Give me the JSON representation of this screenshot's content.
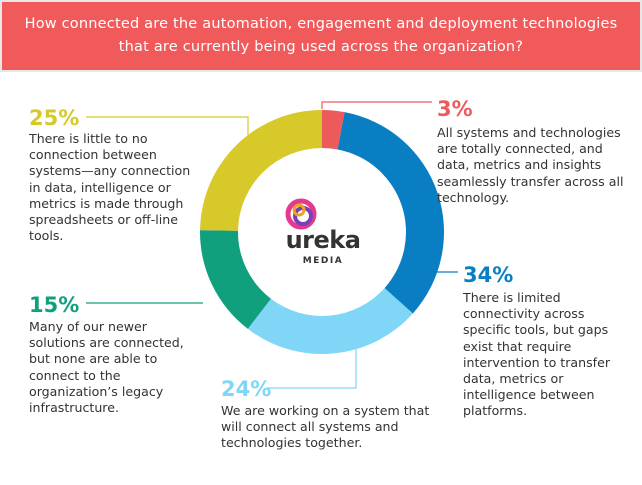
{
  "header": {
    "title": "How connected are the automation, engagement and deployment technologies that are currently being used across the organization?"
  },
  "colors": {
    "header_bg": "#f05a5b",
    "slice_3": "#ed5a5b",
    "slice_34": "#0a7ec3",
    "slice_24": "#7fd6f6",
    "slice_15": "#11a07e",
    "slice_25": "#d8c92b"
  },
  "logo": {
    "icon": "ureka-swirl-icon",
    "word": "ureka",
    "sub": "MEDIA"
  },
  "chart_data": {
    "type": "pie",
    "title": "How connected are the automation, engagement and deployment technologies that are currently being used across the organization?",
    "slices": [
      {
        "label": "3%",
        "value": 3,
        "description": "All systems and technologies are totally connected, and data, metrics and insights seamlessly transfer across all technology."
      },
      {
        "label": "34%",
        "value": 34,
        "description": "There is limited connectivity across specific tools, but gaps exist that require intervention to transfer data, metrics or intelligence between platforms."
      },
      {
        "label": "24%",
        "value": 24,
        "description": "We are working on a system that will connect all systems and technologies together."
      },
      {
        "label": "15%",
        "value": 15,
        "description": "Many of our newer solutions are connected, but none are able to connect to the organization’s legacy infrastructure."
      },
      {
        "label": "25%",
        "value": 25,
        "description": "There is little to no connection between systems—any connection in data, intelligence or metrics is made through spreadsheets or off-line tools."
      }
    ]
  }
}
